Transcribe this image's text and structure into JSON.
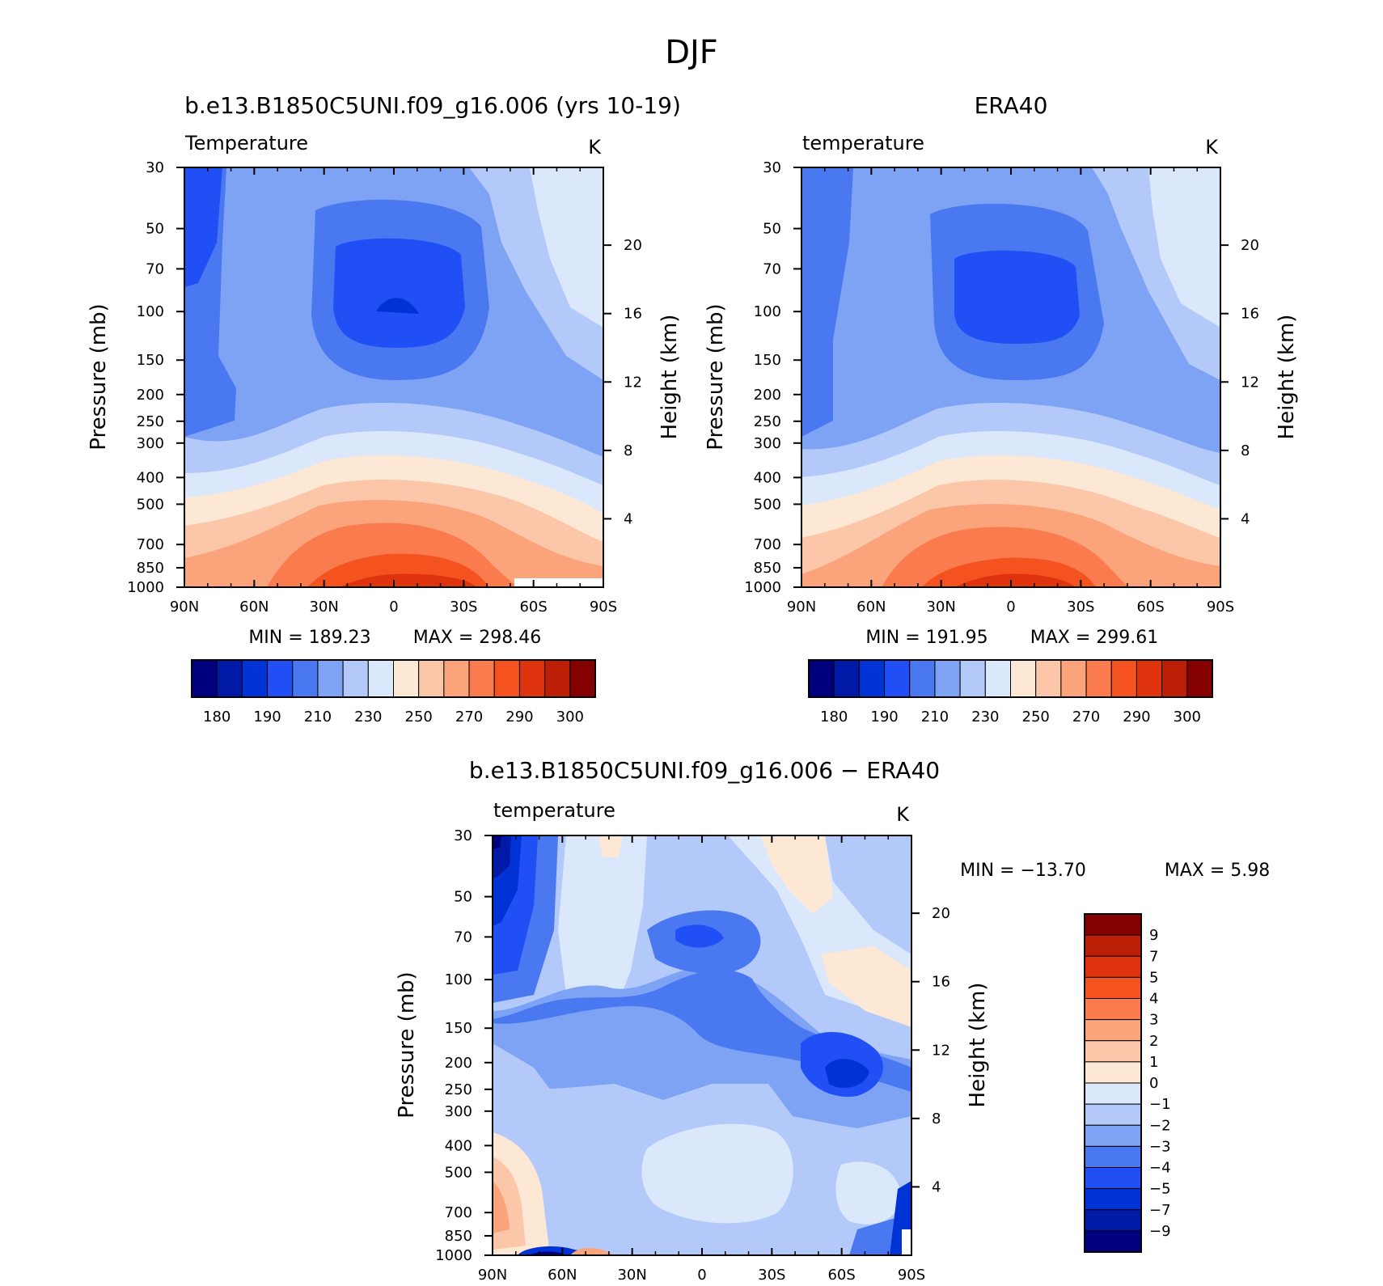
{
  "figure": {
    "title": "DJF"
  },
  "chart_data": [
    {
      "type": "heatmap",
      "id": "model",
      "title": "b.e13.B1850C5UNI.f09_g16.006 (yrs 10-19)",
      "left_label": "Temperature",
      "units": "K",
      "xlabel": "",
      "ylabel": "Pressure (mb)",
      "y2label": "Height (km)",
      "x_ticks": [
        "90N",
        "60N",
        "30N",
        "0",
        "30S",
        "60S",
        "90S"
      ],
      "pressure_ticks": [
        30,
        50,
        70,
        100,
        150,
        200,
        250,
        300,
        400,
        500,
        700,
        850,
        1000
      ],
      "height_ticks": [
        4,
        8,
        12,
        16,
        20
      ],
      "min_label": "MIN = 189.23",
      "max_label": "MAX = 298.46",
      "min": 189.23,
      "max": 298.46,
      "colorbar": {
        "orientation": "horizontal",
        "labels": [
          "180",
          "190",
          "210",
          "230",
          "250",
          "270",
          "290",
          "300"
        ]
      }
    },
    {
      "type": "heatmap",
      "id": "obs",
      "title": "ERA40",
      "left_label": "temperature",
      "units": "K",
      "xlabel": "",
      "ylabel": "Pressure (mb)",
      "y2label": "Height (km)",
      "x_ticks": [
        "90N",
        "60N",
        "30N",
        "0",
        "30S",
        "60S",
        "90S"
      ],
      "pressure_ticks": [
        30,
        50,
        70,
        100,
        150,
        200,
        250,
        300,
        400,
        500,
        700,
        850,
        1000
      ],
      "height_ticks": [
        4,
        8,
        12,
        16,
        20
      ],
      "min_label": "MIN = 191.95",
      "max_label": "MAX = 299.61",
      "min": 191.95,
      "max": 299.61,
      "colorbar": {
        "orientation": "horizontal",
        "labels": [
          "180",
          "190",
          "210",
          "230",
          "250",
          "270",
          "290",
          "300"
        ]
      }
    },
    {
      "type": "heatmap",
      "id": "diff",
      "title": "b.e13.B1850C5UNI.f09_g16.006 − ERA40",
      "left_label": "temperature",
      "units": "K",
      "xlabel": "",
      "ylabel": "Pressure (mb)",
      "y2label": "Height (km)",
      "x_ticks": [
        "90N",
        "60N",
        "30N",
        "0",
        "30S",
        "60S",
        "90S"
      ],
      "pressure_ticks": [
        30,
        50,
        70,
        100,
        150,
        200,
        250,
        300,
        400,
        500,
        700,
        850,
        1000
      ],
      "height_ticks": [
        4,
        8,
        12,
        16,
        20
      ],
      "min_label": "MIN = −13.70",
      "max_label": "MAX = 5.98",
      "min": -13.7,
      "max": 5.98,
      "colorbar": {
        "orientation": "vertical",
        "labels": [
          "9",
          "7",
          "5",
          "4",
          "3",
          "2",
          "1",
          "0",
          "−1",
          "−2",
          "−3",
          "−4",
          "−5",
          "−7",
          "−9"
        ]
      }
    }
  ],
  "palettes": {
    "temperature": [
      "#00007f",
      "#0019a6",
      "#0033d6",
      "#1f4ff5",
      "#4a78f0",
      "#7ea3f5",
      "#b2c9fa",
      "#dbe8fc",
      "#fde7d5",
      "#fcc7a9",
      "#fba37b",
      "#f97b4e",
      "#f4521f",
      "#df330e",
      "#bb1f05",
      "#850000"
    ],
    "difference": [
      "#00007f",
      "#0019a6",
      "#0033d6",
      "#1f4ff5",
      "#4a78f0",
      "#7ea3f5",
      "#b2c9fa",
      "#dbe8fc",
      "#fde7d5",
      "#fcc7a9",
      "#fba37b",
      "#f97b4e",
      "#f4521f",
      "#df330e",
      "#bb1f05",
      "#850000"
    ]
  }
}
